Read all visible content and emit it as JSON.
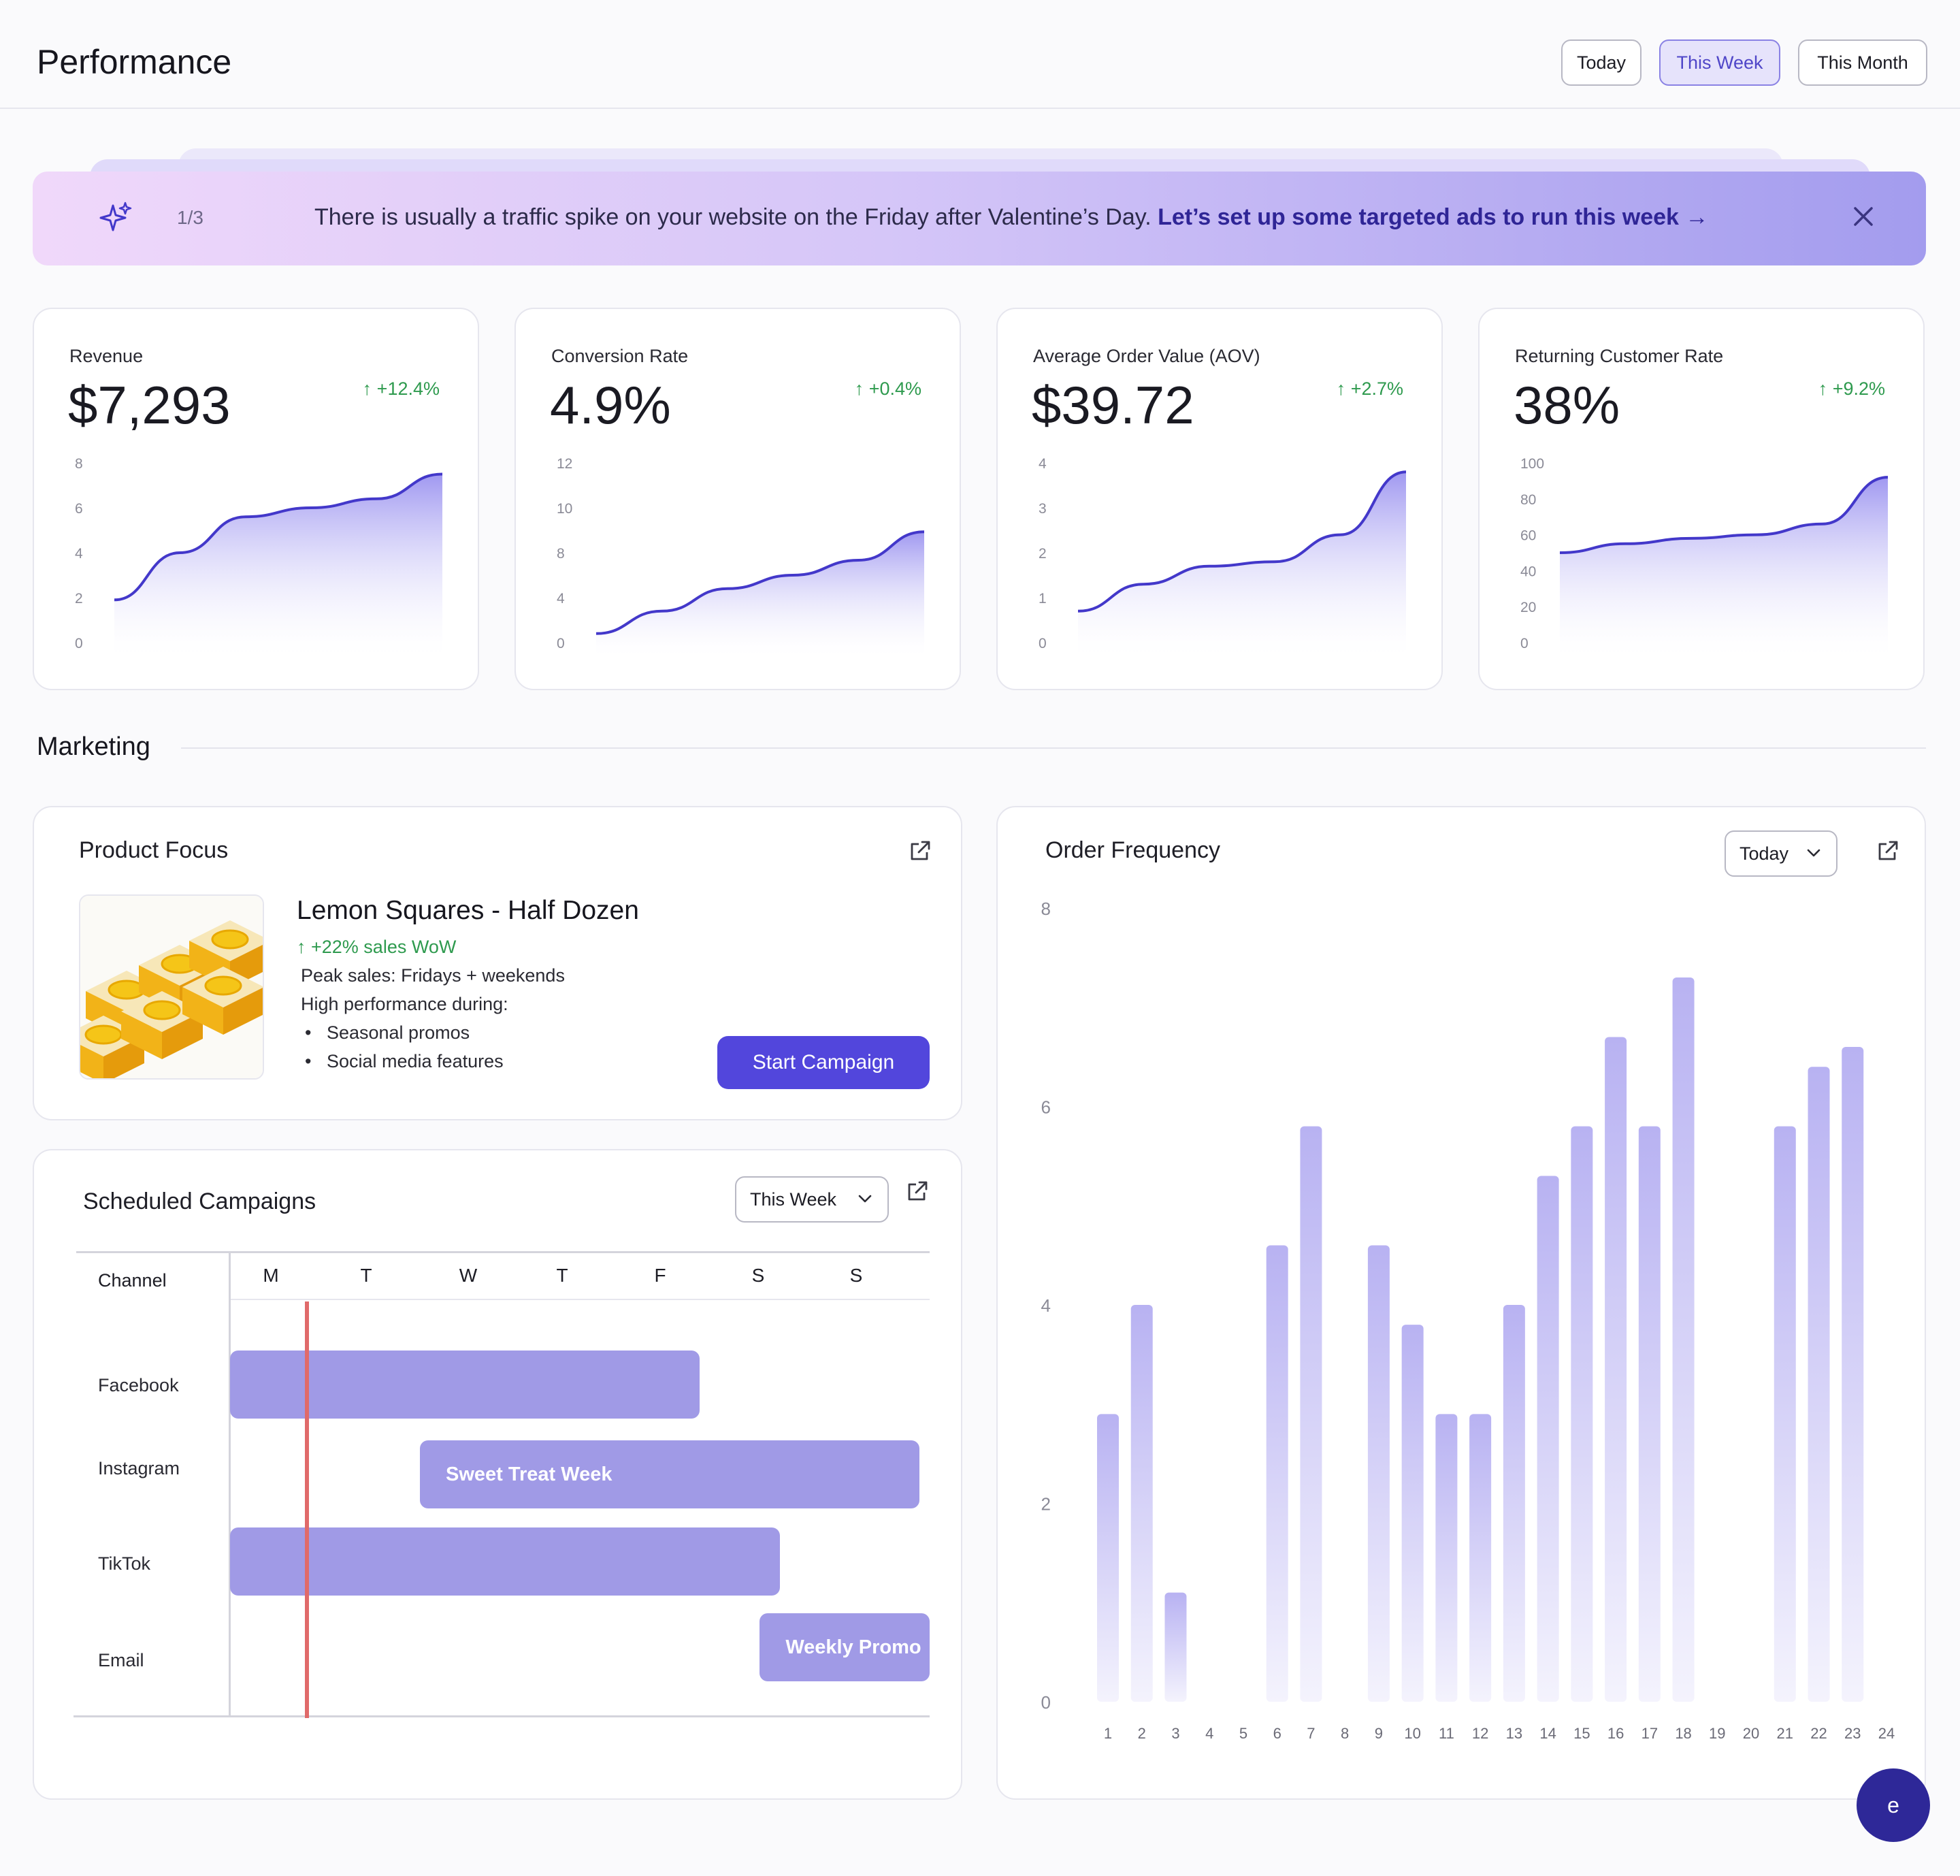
{
  "header": {
    "title": "Performance",
    "ranges": [
      {
        "label": "Today",
        "active": false
      },
      {
        "label": "This Week",
        "active": true
      },
      {
        "label": "This Month",
        "active": false
      }
    ]
  },
  "banner": {
    "icon": "sparkle-icon",
    "counter": "1/3",
    "message": "There is usually a traffic spike on your website on the Friday after Valentine’s Day.",
    "cta": "Let’s set up some targeted ads to run this week →",
    "close_icon": "close-icon"
  },
  "kpis": [
    {
      "label": "Revenue",
      "value": "$7,293",
      "delta": "↑ +12.4%",
      "ticks": [
        "8",
        "6",
        "4",
        "2",
        "0"
      ],
      "ymax": 8,
      "points": [
        1.9,
        4.0,
        5.6,
        6.0,
        6.4,
        7.5
      ]
    },
    {
      "label": "Conversion Rate",
      "value": "4.9%",
      "delta": "↑ +0.4%",
      "ticks": [
        "12",
        "10",
        "8",
        "4",
        "0"
      ],
      "ymax": 12,
      "points": [
        0.6,
        2.1,
        3.6,
        4.5,
        5.5,
        7.4
      ]
    },
    {
      "label": "Average Order Value (AOV)",
      "value": "$39.72",
      "delta": "↑ +2.7%",
      "ticks": [
        "4",
        "3",
        "2",
        "1",
        "0"
      ],
      "ymax": 4,
      "points": [
        0.7,
        1.3,
        1.7,
        1.8,
        2.4,
        3.8
      ]
    },
    {
      "label": "Returning Customer Rate",
      "value": "38%",
      "delta": "↑ +9.2%",
      "ticks": [
        "100",
        "80",
        "60",
        "40",
        "20",
        "0"
      ],
      "ymax": 100,
      "points": [
        50,
        55,
        58,
        60,
        66,
        92
      ]
    }
  ],
  "colors": {
    "accent": "#5246dc",
    "line": "#4338ca",
    "positive": "#2e9a4e",
    "bar": "#a09ae6",
    "today_marker": "#e06a6a"
  },
  "marketing": {
    "title": "Marketing"
  },
  "product_focus": {
    "title": "Product Focus",
    "name": "Lemon Squares - Half Dozen",
    "delta": "↑ +22% sales WoW",
    "peak": "Peak sales: Fridays + weekends",
    "high_perf": "High performance during:",
    "bullets": [
      "Seasonal promos",
      "Social media features"
    ],
    "cta": "Start Campaign"
  },
  "scheduled": {
    "title": "Scheduled Campaigns",
    "range": "This Week",
    "channel_header": "Channel",
    "days": [
      "M",
      "T",
      "W",
      "T",
      "F",
      "S",
      "S"
    ],
    "channels": [
      "Facebook",
      "Instagram",
      "TikTok",
      "Email"
    ],
    "campaigns": [
      {
        "channel": "Facebook",
        "label": "",
        "start_day": 0.0,
        "end_day": 4.7
      },
      {
        "channel": "Instagram",
        "label": "Sweet Treat Week",
        "start_day": 1.9,
        "end_day": 6.9
      },
      {
        "channel": "TikTok",
        "label": "",
        "start_day": 0.0,
        "end_day": 5.5
      },
      {
        "channel": "Email",
        "label": "Weekly Promo",
        "start_day": 5.3,
        "end_day": 7.0
      }
    ],
    "today_day": 0.77
  },
  "order_frequency": {
    "title": "Order Frequency",
    "range": "Today",
    "chart_data": {
      "type": "bar",
      "title": "Order Frequency",
      "categories": [
        "1",
        "2",
        "3",
        "4",
        "5",
        "6",
        "7",
        "8",
        "9",
        "10",
        "11",
        "12",
        "13",
        "14",
        "15",
        "16",
        "17",
        "18",
        "19",
        "20",
        "21",
        "22",
        "23",
        "24"
      ],
      "values": [
        2.9,
        4.0,
        1.1,
        0,
        0,
        4.6,
        5.8,
        0,
        4.6,
        3.8,
        2.9,
        2.9,
        4.0,
        5.3,
        5.8,
        6.7,
        5.8,
        7.3,
        0,
        0,
        5.8,
        6.4,
        6.6,
        0
      ],
      "yticks": [
        "8",
        "6",
        "4",
        "2",
        "0"
      ],
      "ylim": [
        0,
        8
      ]
    }
  },
  "fab": {
    "label": "e"
  }
}
